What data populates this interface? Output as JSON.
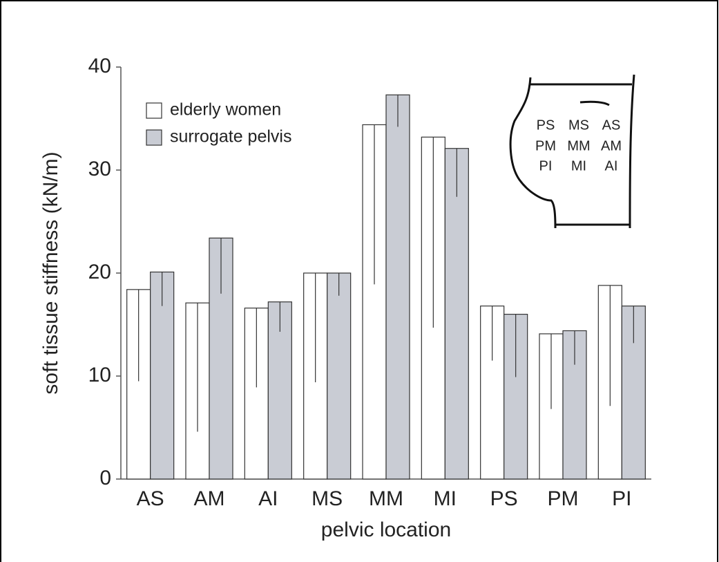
{
  "chart_data": {
    "type": "bar",
    "y_label": "soft tissue stiffness (kN/m)",
    "x_label": "pelvic location",
    "categories": [
      "AS",
      "AM",
      "AI",
      "MS",
      "MM",
      "MI",
      "PS",
      "PM",
      "PI"
    ],
    "series": [
      {
        "name": "elderly women",
        "color": "#ffffff",
        "values": [
          18.4,
          17.1,
          16.6,
          20.0,
          34.4,
          33.2,
          16.8,
          14.1,
          18.8
        ],
        "errors": [
          8.9,
          12.5,
          7.7,
          10.6,
          15.5,
          18.5,
          5.3,
          7.3,
          11.7
        ]
      },
      {
        "name": "surrogate pelvis",
        "color": "#c9ccd4",
        "values": [
          20.1,
          23.4,
          17.2,
          20.0,
          37.3,
          32.1,
          16.0,
          14.4,
          16.8
        ],
        "errors": [
          3.3,
          5.4,
          2.9,
          2.2,
          3.1,
          4.7,
          6.1,
          3.3,
          3.6
        ]
      }
    ],
    "ylim": [
      0,
      40
    ],
    "yticks": [
      0,
      10,
      20,
      30,
      40
    ],
    "grid": false,
    "legend": "upper left",
    "inset": {
      "rows": [
        [
          "PS",
          "MS",
          "AS"
        ],
        [
          "PM",
          "MM",
          "AM"
        ],
        [
          "PI",
          "MI",
          "AI"
        ]
      ]
    }
  }
}
